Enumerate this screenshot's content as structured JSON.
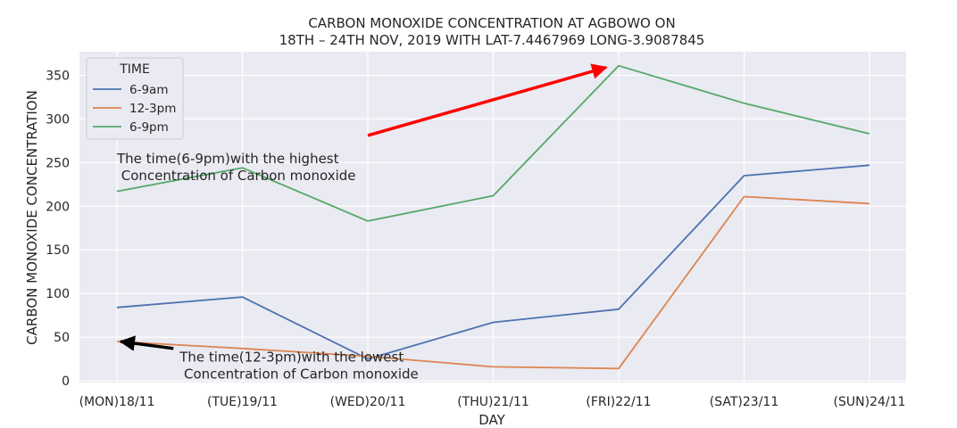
{
  "chart_data": {
    "type": "line",
    "title_line1": "CARBON MONOXIDE CONCENTRATION AT AGBOWO ON",
    "title_line2": "18TH – 24TH NOV, 2019 WITH LAT-7.4467969 LONG-3.9087845",
    "xlabel": "DAY",
    "ylabel": "CARBON MONOXIDE CONCENTRATION",
    "categories": [
      "(MON)18/11",
      "(TUE)19/11",
      "(WED)20/11",
      "(THU)21/11",
      "(FRI)22/11",
      "(SAT)23/11",
      "(SUN)24/11"
    ],
    "yticks": [
      0,
      50,
      100,
      150,
      200,
      250,
      300,
      350
    ],
    "ylim": [
      -2,
      377
    ],
    "grid": true,
    "legend": {
      "title": "TIME",
      "placement": "top-left"
    },
    "series": [
      {
        "name": "6-9am",
        "color": "#4c72b0",
        "values": [
          84,
          96,
          25,
          67,
          82,
          235,
          247
        ]
      },
      {
        "name": "12-3pm",
        "color": "#dd8452",
        "values": [
          45,
          37,
          28,
          16,
          14,
          211,
          203
        ]
      },
      {
        "name": "6-9pm",
        "color": "#55a868",
        "values": [
          217,
          244,
          183,
          212,
          361,
          318,
          283
        ]
      }
    ],
    "annotations": [
      {
        "id": "high",
        "line1": "The time(6-9pm)with the highest",
        "line2": " Concentration of Carbon monoxide",
        "text_at": {
          "x": 0,
          "y": 237
        },
        "arrow_from": {
          "x": 2,
          "y": 281
        },
        "arrow_to": {
          "x": 3.9,
          "y": 359
        },
        "color": "#ff0000"
      },
      {
        "id": "low",
        "line1": "The time(12-3pm)with the lowest",
        "line2": " Concentration of Carbon monoxide",
        "text_at": {
          "x": 0.5,
          "y": 10
        },
        "arrow_from": {
          "x": 0.45,
          "y": 37
        },
        "arrow_to": {
          "x": 0.03,
          "y": 45
        },
        "color": "#000000"
      }
    ]
  }
}
